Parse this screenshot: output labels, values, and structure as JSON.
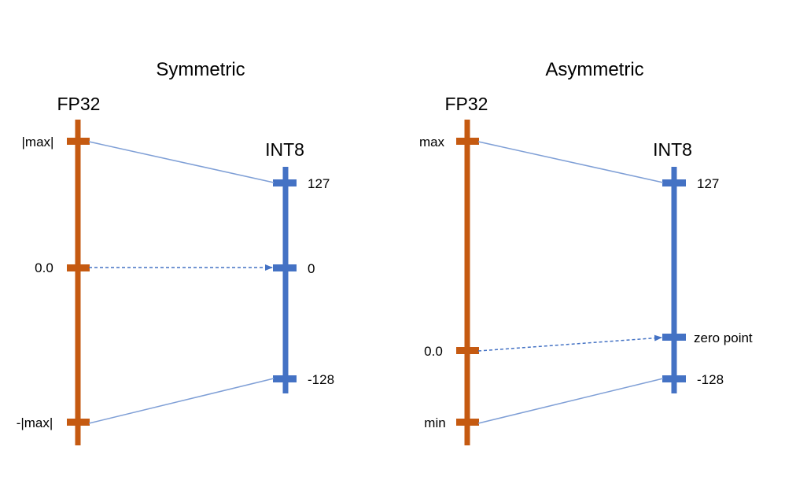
{
  "colors": {
    "fp32": "#c55a11",
    "int8": "#4472c4",
    "mapping_line": "#7f9fd6",
    "text": "#1a1a1a"
  },
  "panels": [
    {
      "title": "Symmetric",
      "source_axis": "FP32",
      "target_axis": "INT8",
      "fp32_labels": [
        "|max|",
        "0.0",
        "-|max|"
      ],
      "int8_labels": [
        "127",
        "0",
        "-128"
      ]
    },
    {
      "title": "Asymmetric",
      "source_axis": "FP32",
      "target_axis": "INT8",
      "fp32_labels": [
        "max",
        "0.0",
        "min"
      ],
      "int8_labels": [
        "127",
        "zero point",
        "-128"
      ]
    }
  ]
}
